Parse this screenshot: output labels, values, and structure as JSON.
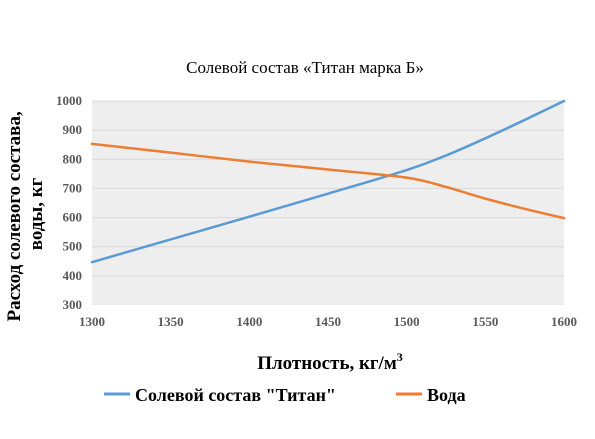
{
  "colors": {
    "plot_bg": "#eeeeee",
    "grid": "#d9d9d9",
    "tick_text": "#595959",
    "text": "#000000",
    "series_1": "#5b9bd5",
    "series_2": "#ed7d31"
  },
  "chart_data": {
    "type": "line",
    "title": "Солевой состав «Титан марка Б»",
    "xlabel": "Плотность, кг/м",
    "xlabel_sup": "3",
    "ylabel_line1": "Расход солевого состава,",
    "ylabel_line2": "воды, кг",
    "xlim": [
      1300,
      1600
    ],
    "ylim": [
      300,
      1000
    ],
    "x_ticks": [
      1300,
      1350,
      1400,
      1450,
      1500,
      1550,
      1600
    ],
    "y_ticks": [
      300,
      400,
      500,
      600,
      700,
      800,
      900,
      1000
    ],
    "grid": true,
    "legend_position": "bottom",
    "x": [
      1300,
      1350,
      1400,
      1450,
      1500,
      1525,
      1550,
      1575,
      1600
    ],
    "series": [
      {
        "name": "Солевой состав \"Титан\"",
        "color_key": "series_1",
        "values": [
          447,
          525,
          603,
          682,
          763,
          813,
          872,
          935,
          1000
        ]
      },
      {
        "name": "Вода",
        "color_key": "series_2",
        "values": [
          853,
          823,
          792,
          765,
          737,
          705,
          665,
          630,
          598
        ]
      }
    ]
  }
}
